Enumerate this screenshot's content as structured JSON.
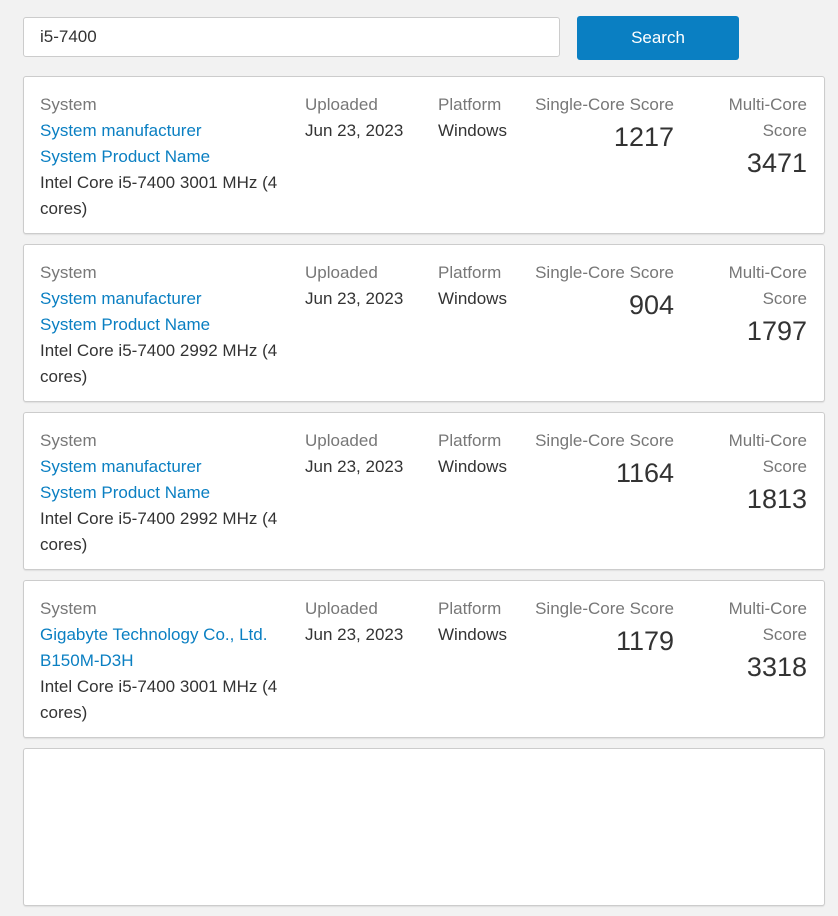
{
  "search": {
    "value": "i5-7400",
    "button_label": "Search"
  },
  "labels": {
    "system": "System",
    "uploaded": "Uploaded",
    "platform": "Platform",
    "single_core": "Single-Core Score",
    "multi_core": "Multi-Core Score"
  },
  "colors": {
    "accent": "#0a7fc2",
    "background": "#f2f2f2"
  },
  "results": [
    {
      "system_links": [
        "System manufacturer",
        "System Product Name"
      ],
      "cpu": "Intel Core i5-7400 3001 MHz (4 cores)",
      "uploaded": "Jun 23, 2023",
      "platform": "Windows",
      "single_core": "1217",
      "multi_core": "3471"
    },
    {
      "system_links": [
        "System manufacturer",
        "System Product Name"
      ],
      "cpu": "Intel Core i5-7400 2992 MHz (4 cores)",
      "uploaded": "Jun 23, 2023",
      "platform": "Windows",
      "single_core": "904",
      "multi_core": "1797"
    },
    {
      "system_links": [
        "System manufacturer",
        "System Product Name"
      ],
      "cpu": "Intel Core i5-7400 2992 MHz (4 cores)",
      "uploaded": "Jun 23, 2023",
      "platform": "Windows",
      "single_core": "1164",
      "multi_core": "1813"
    },
    {
      "system_links": [
        "Gigabyte Technology Co., Ltd. B150M-D3H"
      ],
      "cpu": "Intel Core i5-7400 3001 MHz (4 cores)",
      "uploaded": "Jun 23, 2023",
      "platform": "Windows",
      "single_core": "1179",
      "multi_core": "3318"
    }
  ]
}
